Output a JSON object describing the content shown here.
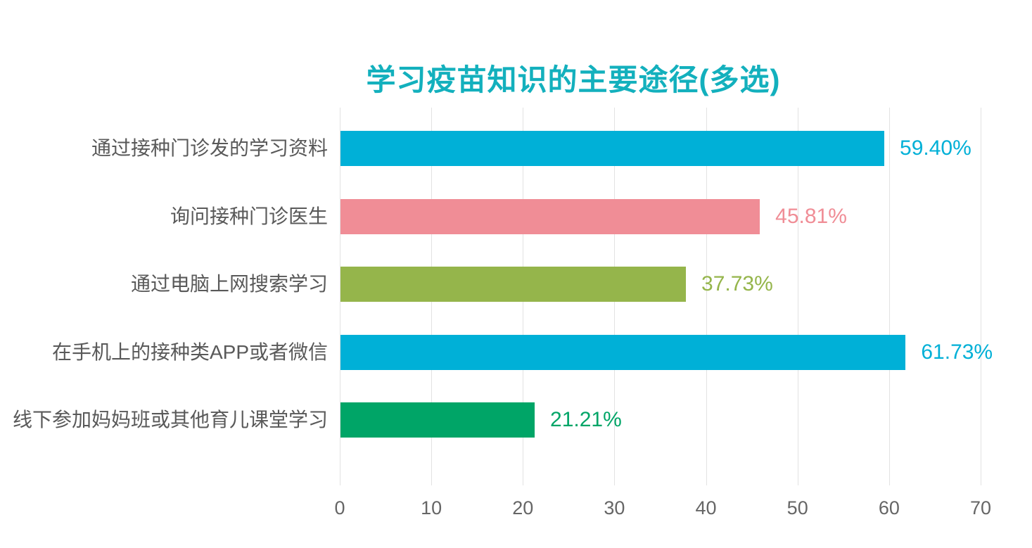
{
  "chart_data": {
    "type": "bar",
    "orientation": "horizontal",
    "title": "学习疫苗知识的主要途径(多选)",
    "categories": [
      "通过接种门诊发的学习资料",
      "询问接种门诊医生",
      "通过电脑上网搜索学习",
      "在手机上的接种类APP或者微信",
      "线下参加妈妈班或其他育儿课堂学习"
    ],
    "values": [
      59.4,
      45.81,
      37.73,
      61.73,
      21.21
    ],
    "value_labels": [
      "59.40%",
      "45.81%",
      "37.73%",
      "61.73%",
      "21.21%"
    ],
    "bar_colors": [
      "#00b0d7",
      "#f08d96",
      "#95b54b",
      "#00b0d7",
      "#00a567"
    ],
    "xlabel": "",
    "ylabel": "",
    "xlim": [
      0,
      70
    ],
    "x_ticks": [
      0,
      10,
      20,
      30,
      40,
      50,
      60,
      70
    ],
    "grid": true,
    "legend": "none"
  },
  "theme": {
    "title_color": "#13b0bd",
    "category_label_color": "#595959",
    "tick_label_color": "#666666",
    "gridline_color": "#e2e2e2",
    "background": "#ffffff"
  }
}
